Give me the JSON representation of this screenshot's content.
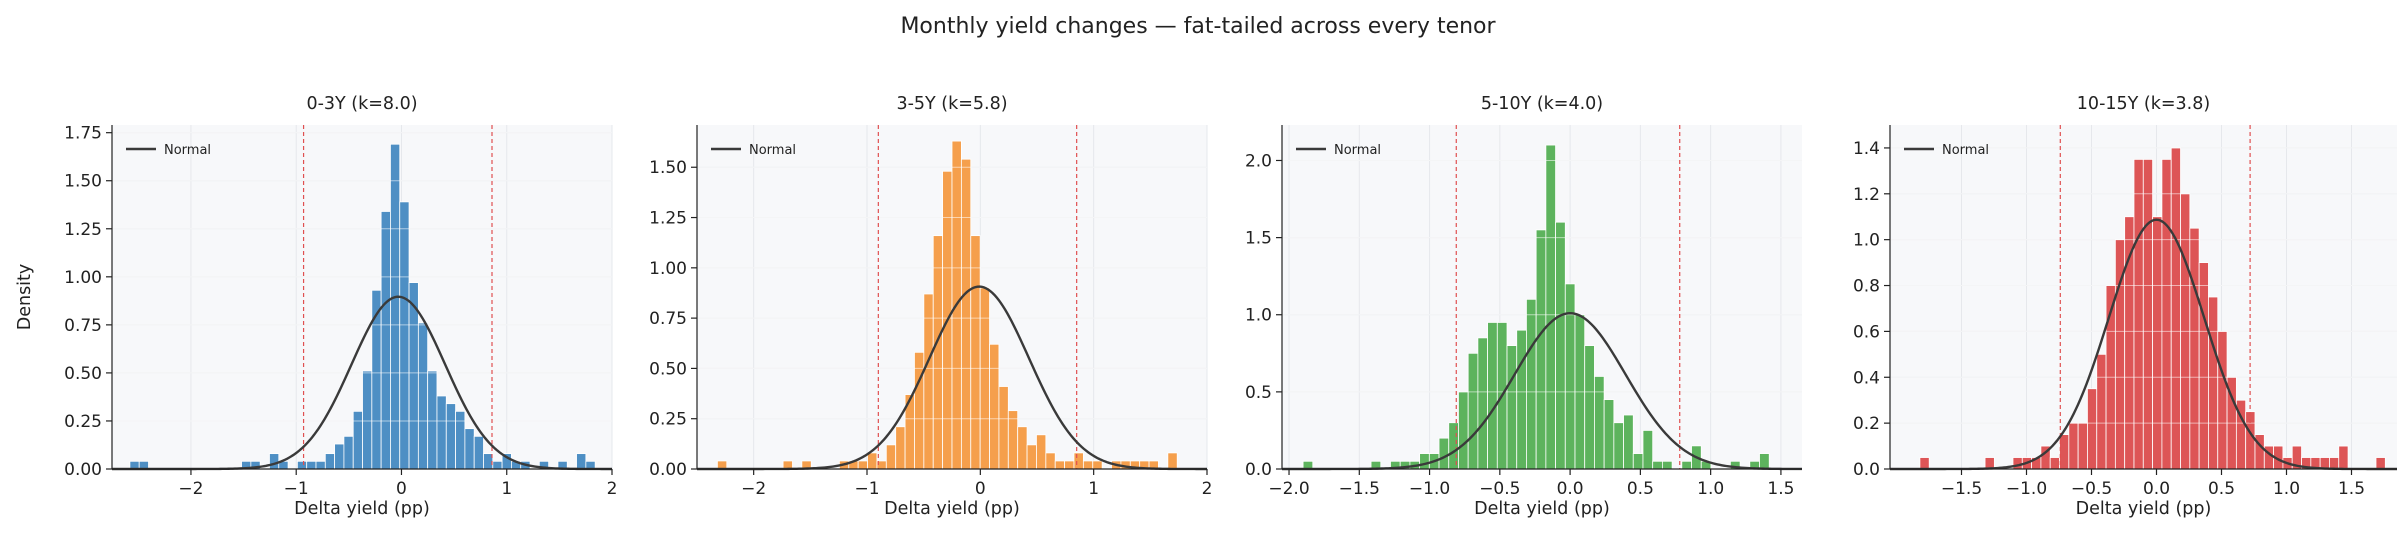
{
  "figure": {
    "title": "Monthly yield changes — fat-tailed across every tenor"
  },
  "chart_data": [
    {
      "type": "bar",
      "title": "0-3Y  (k=8.0)",
      "xlabel": "Delta yield (pp)",
      "ylabel": "Density",
      "xlim": [
        -2.75,
        2.0
      ],
      "ylim": [
        0,
        1.79
      ],
      "xticks": [
        -2,
        -1,
        0,
        1,
        2
      ],
      "yticks": [
        0.0,
        0.25,
        0.5,
        0.75,
        1.0,
        1.25,
        1.5,
        1.75
      ],
      "ytick_format": 2,
      "color": "#4e8fc4",
      "grid": true,
      "legend": {
        "position": "top-left",
        "entries": [
          "Normal"
        ]
      },
      "bins": {
        "start": -2.58,
        "width": 0.0884,
        "values": [
          0.04,
          0.04,
          0,
          0,
          0,
          0,
          0,
          0,
          0,
          0,
          0,
          0,
          0.04,
          0.04,
          0,
          0.08,
          0.04,
          0,
          0.04,
          0.04,
          0.04,
          0.08,
          0.13,
          0.17,
          0.3,
          0.51,
          0.93,
          1.34,
          1.69,
          1.39,
          0.97,
          0.76,
          0.51,
          0.38,
          0.34,
          0.3,
          0.21,
          0.17,
          0.08,
          0.04,
          0.08,
          0.04,
          0.04,
          0,
          0.04,
          0,
          0.04,
          0,
          0.08,
          0.04
        ]
      },
      "normal": {
        "mean": -0.03,
        "sd": 0.445
      },
      "vlines": [
        -0.93,
        0.86
      ]
    },
    {
      "type": "bar",
      "title": "3-5Y  (k=5.8)",
      "xlabel": "Delta yield (pp)",
      "ylabel": "",
      "xlim": [
        -2.5,
        2.0
      ],
      "ylim": [
        0,
        1.71
      ],
      "xticks": [
        -2,
        -1,
        0,
        1,
        2
      ],
      "yticks": [
        0.0,
        0.25,
        0.5,
        0.75,
        1.0,
        1.25,
        1.5
      ],
      "ytick_format": 2,
      "color": "#f59f4c",
      "grid": true,
      "legend": {
        "position": "top-left",
        "entries": [
          "Normal"
        ]
      },
      "bins": {
        "start": -2.32,
        "width": 0.0828,
        "values": [
          0.04,
          0,
          0,
          0,
          0,
          0,
          0,
          0.04,
          0,
          0.04,
          0,
          0,
          0,
          0.04,
          0.04,
          0.04,
          0.08,
          0.04,
          0.12,
          0.21,
          0.37,
          0.58,
          0.87,
          1.16,
          1.48,
          1.63,
          1.54,
          1.16,
          0.9,
          0.62,
          0.41,
          0.29,
          0.21,
          0.12,
          0.17,
          0.08,
          0.04,
          0.04,
          0.08,
          0.04,
          0.04,
          0,
          0.04,
          0.04,
          0.04,
          0.04,
          0.04,
          0,
          0.08
        ]
      },
      "normal": {
        "mean": -0.01,
        "sd": 0.44
      },
      "vlines": [
        -0.9,
        0.85
      ]
    },
    {
      "type": "bar",
      "title": "5-10Y  (k=4.0)",
      "xlabel": "Delta yield (pp)",
      "ylabel": "",
      "xlim": [
        -2.05,
        1.65
      ],
      "ylim": [
        0,
        2.23
      ],
      "xticks": [
        -2.0,
        -1.5,
        -1.0,
        -0.5,
        0.0,
        0.5,
        1.0,
        1.5
      ],
      "yticks": [
        0.0,
        0.5,
        1.0,
        1.5,
        2.0
      ],
      "ytick_format": 1,
      "color": "#5db35d",
      "grid": true,
      "legend": {
        "position": "top-left",
        "entries": [
          "Normal"
        ]
      },
      "bins": {
        "start": -1.9,
        "width": 0.0691,
        "values": [
          0.05,
          0,
          0,
          0,
          0,
          0,
          0,
          0.05,
          0,
          0.05,
          0.05,
          0.05,
          0.1,
          0.1,
          0.2,
          0.3,
          0.5,
          0.75,
          0.85,
          0.95,
          0.95,
          0.8,
          0.9,
          1.1,
          1.55,
          2.1,
          1.6,
          1.2,
          1.0,
          0.8,
          0.6,
          0.45,
          0.3,
          0.35,
          0.1,
          0.25,
          0.05,
          0.05,
          0,
          0.05,
          0.15,
          0.05,
          0,
          0,
          0.05,
          0,
          0.05,
          0.1
        ]
      },
      "normal": {
        "mean": 0.0,
        "sd": 0.395
      },
      "vlines": [
        -0.81,
        0.78
      ]
    },
    {
      "type": "bar",
      "title": "10-15Y  (k=3.8)",
      "xlabel": "Delta yield (pp)",
      "ylabel": "",
      "xlim": [
        -2.05,
        1.85
      ],
      "ylim": [
        0,
        1.5
      ],
      "xticks": [
        -1.5,
        -1.0,
        -0.5,
        0.0,
        0.5,
        1.0,
        1.5
      ],
      "yticks": [
        0.0,
        0.2,
        0.4,
        0.6,
        0.8,
        1.0,
        1.2,
        1.4
      ],
      "ytick_format": 1,
      "color": "#dd5556",
      "grid": true,
      "legend": {
        "position": "top-left",
        "entries": [
          "Normal"
        ]
      },
      "bins": {
        "start": -1.82,
        "width": 0.0716,
        "values": [
          0.05,
          0,
          0,
          0,
          0,
          0,
          0,
          0.05,
          0,
          0,
          0.05,
          0.05,
          0.05,
          0.1,
          0.05,
          0.15,
          0.2,
          0.2,
          0.35,
          0.5,
          0.8,
          1.0,
          1.1,
          1.35,
          1.35,
          1.1,
          1.35,
          1.4,
          1.2,
          1.05,
          0.9,
          0.75,
          0.6,
          0.4,
          0.3,
          0.25,
          0.15,
          0.1,
          0.1,
          0.05,
          0.1,
          0.05,
          0.05,
          0.05,
          0.05,
          0.1,
          0,
          0,
          0,
          0.05
        ]
      },
      "normal": {
        "mean": 0.0,
        "sd": 0.367
      },
      "vlines": [
        -0.74,
        0.72
      ]
    }
  ]
}
